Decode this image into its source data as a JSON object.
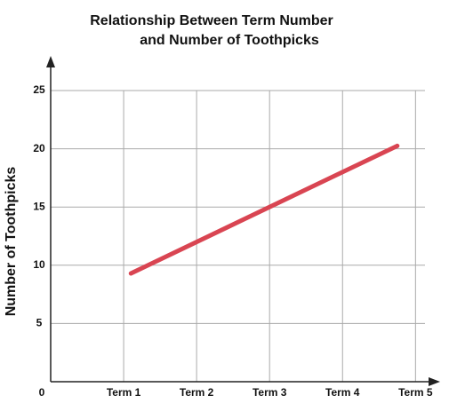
{
  "chart_data": {
    "type": "line",
    "title": [
      "Relationship Between Term Number",
      "and Number of Toothpicks"
    ],
    "y_label": "Number of Toothpicks",
    "x": [
      1.1,
      4.75
    ],
    "series": [
      {
        "color": "#d94552",
        "values": [
          9.3,
          20.25
        ]
      }
    ],
    "xlim": [
      0,
      5.13
    ],
    "xticks": [
      {
        "value": 1,
        "label": "Term 1"
      },
      {
        "value": 2,
        "label": "Term 2"
      },
      {
        "value": 3,
        "label": "Term 3"
      },
      {
        "value": 4,
        "label": "Term 4"
      },
      {
        "value": 5,
        "label": "Term 5"
      }
    ],
    "ylim": [
      0,
      25
    ],
    "yticks": [
      0,
      5,
      10,
      15,
      20,
      25
    ],
    "grid": true
  }
}
